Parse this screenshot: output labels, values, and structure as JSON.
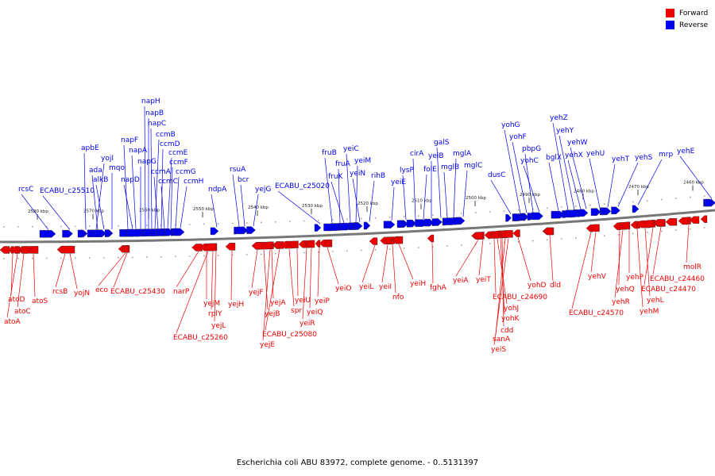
{
  "legend": {
    "forward": {
      "label": "Forward",
      "color": "#ee0000"
    },
    "reverse": {
      "label": "Reverse",
      "color": "#0000ee"
    }
  },
  "caption": "Escherichia coli ABU 83972, complete genome. - 0..5131397",
  "scale_labels": [
    "2580 kbp",
    "2570 kbp",
    "2560 kbp",
    "2550 kbp",
    "2540 kbp",
    "2530 kbp",
    "2520 kbp",
    "2510 kbp",
    "2500 kbp",
    "2490 kbp",
    "2480 kbp",
    "2470 kbp",
    "2460 kbp"
  ],
  "reverse_genes": [
    "rcsC",
    "ECABU_c25510",
    "apbE",
    "yojI",
    "ada",
    "alkB",
    "mqo",
    "napF",
    "napD",
    "napA",
    "napG",
    "napH",
    "napB",
    "napC",
    "ccmB",
    "ccmA",
    "ccmD",
    "ccmC",
    "ccmE",
    "ccmF",
    "ccmG",
    "ccmH",
    "ndpA",
    "rsuA",
    "bcr",
    "yejG",
    "ECABU_c25020",
    "fruB",
    "fruA",
    "fruK",
    "yeiC",
    "yeiM",
    "yeiN",
    "rihB",
    "yeiE",
    "lysP",
    "cirA",
    "folE",
    "yeiB",
    "galS",
    "mglB",
    "mglA",
    "mglC",
    "dusC",
    "yohG",
    "yohF",
    "pbpG",
    "yohC",
    "bglX",
    "yehZ",
    "yehY",
    "yehX",
    "yehW",
    "yehU",
    "yehT",
    "yehS",
    "mrp",
    "yehE"
  ],
  "forward_genes": [
    "atoD",
    "atoC",
    "atoS",
    "atoA",
    "rcsB",
    "yojN",
    "eco",
    "ECABU_c25430",
    "narP",
    "yejM",
    "rplY",
    "yejL",
    "yejH",
    "ECABU_c25260",
    "yejF",
    "yejB",
    "yejA",
    "ECABU_c25080",
    "yejE",
    "spr",
    "yeiU",
    "yeiR",
    "yeiP",
    "yeiQ",
    "yeiO",
    "yeiL",
    "yeiI",
    "nfo",
    "yeiH",
    "fghA",
    "yeiA",
    "yeiT",
    "ECABU_c24690",
    "yohJ",
    "yohK",
    "cdd",
    "sanA",
    "yeiS",
    "yohD",
    "dld",
    "ECABU_c24570",
    "yehV",
    "yehQ",
    "yehR",
    "yehP",
    "yehM",
    "yehL",
    "ECABU_c24470",
    "ECABU_c24460",
    "molR"
  ]
}
